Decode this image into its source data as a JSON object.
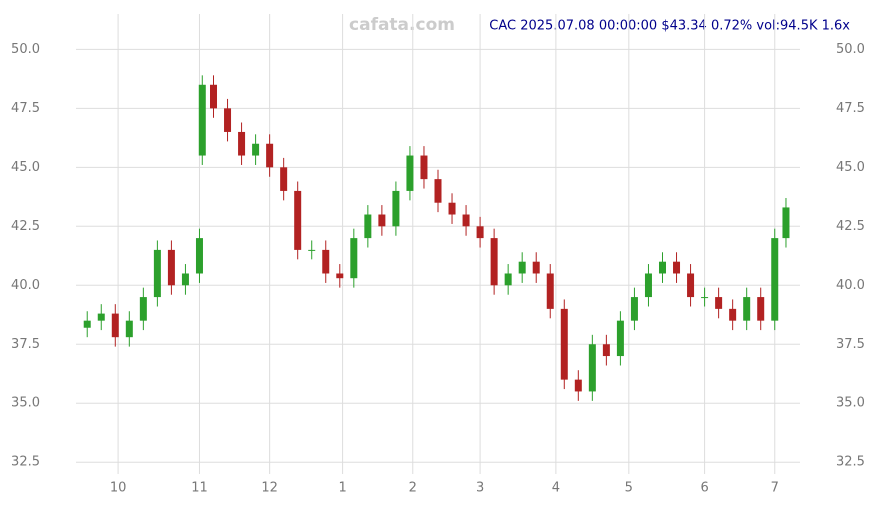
{
  "chart_data": {
    "type": "candlestick",
    "watermark": "cafata.com",
    "title": "CAC 2025.07.08 00:00:00 $43.34 0.72% vol:94.5K 1.6x",
    "x": [
      0,
      5,
      10,
      15,
      20,
      25,
      30,
      35,
      40,
      41,
      45,
      50,
      55,
      60,
      65,
      70,
      75,
      80,
      85,
      90,
      95,
      100,
      105,
      110,
      115,
      120,
      125,
      130,
      135,
      140,
      145,
      150,
      155,
      160,
      165,
      170,
      175,
      180,
      185,
      190,
      195,
      200,
      205,
      210,
      215,
      220,
      225,
      230,
      235,
      240,
      245,
      249
    ],
    "open": [
      38.2,
      38.5,
      38.8,
      37.8,
      38.5,
      39.5,
      41.5,
      40,
      40.5,
      45.5,
      48.5,
      47.5,
      46.5,
      45.5,
      46,
      45,
      44,
      41.5,
      41.5,
      40.5,
      40.3,
      42,
      43,
      42.5,
      44,
      45.5,
      44.5,
      43.5,
      43,
      42.5,
      42,
      40,
      40.5,
      41,
      40.5,
      39,
      36,
      35.5,
      37.5,
      37,
      38.5,
      39.5,
      40.5,
      41,
      40.5,
      39.5,
      39.5,
      39,
      38.5,
      39.5,
      38.5,
      42
    ],
    "high": [
      38.9,
      39.2,
      39.2,
      38.9,
      39.9,
      41.9,
      41.9,
      40.9,
      42.4,
      48.9,
      48.9,
      47.9,
      46.9,
      46.4,
      46.4,
      45.4,
      44.4,
      41.9,
      41.9,
      40.9,
      42.4,
      43.4,
      43.4,
      44.4,
      45.9,
      45.9,
      44.9,
      43.9,
      43.4,
      42.9,
      42.4,
      40.9,
      41.4,
      41.4,
      40.9,
      39.4,
      36.4,
      37.9,
      37.9,
      38.9,
      39.9,
      40.9,
      41.4,
      41.4,
      40.9,
      39.9,
      39.9,
      39.4,
      39.9,
      39.9,
      42.4,
      43.7
    ],
    "low": [
      37.8,
      38.1,
      37.4,
      37.4,
      38.1,
      39.1,
      39.6,
      39.6,
      40.1,
      45.1,
      47.1,
      46.1,
      45.1,
      45.1,
      44.6,
      43.6,
      41.1,
      41.1,
      40.1,
      39.9,
      39.9,
      41.6,
      42.1,
      42.1,
      43.6,
      44.1,
      43.1,
      42.6,
      42.1,
      41.6,
      39.6,
      39.6,
      40.1,
      40.1,
      38.6,
      35.6,
      35.1,
      35.1,
      36.6,
      36.6,
      38.1,
      39.1,
      40.1,
      40.1,
      39.1,
      39.1,
      38.6,
      38.1,
      38.1,
      38.1,
      38.1,
      41.6
    ],
    "close": [
      38.5,
      38.8,
      37.8,
      38.5,
      39.5,
      41.5,
      40,
      40.5,
      42,
      48.5,
      47.5,
      46.5,
      45.5,
      46,
      45,
      44,
      41.5,
      41.5,
      40.5,
      40.3,
      42,
      43,
      42.5,
      44,
      45.5,
      44.5,
      43.5,
      43,
      42.5,
      42,
      40,
      40.5,
      41,
      40.5,
      39,
      36,
      35.5,
      37.5,
      37,
      38.5,
      39.5,
      40.5,
      41,
      40.5,
      39.5,
      39.5,
      39,
      38.5,
      39.5,
      38.5,
      42,
      43.3
    ],
    "up_color": "#2ca02c",
    "down_color": "#b22222",
    "xlim": [
      -4,
      254
    ],
    "xticks": [
      {
        "value": 11,
        "label": "10"
      },
      {
        "value": 40,
        "label": "11"
      },
      {
        "value": 65,
        "label": "12"
      },
      {
        "value": 91,
        "label": "1"
      },
      {
        "value": 116,
        "label": "2"
      },
      {
        "value": 140,
        "label": "3"
      },
      {
        "value": 167,
        "label": "4"
      },
      {
        "value": 193,
        "label": "5"
      },
      {
        "value": 220,
        "label": "6"
      },
      {
        "value": 245,
        "label": "7"
      }
    ],
    "ylim": [
      32,
      51.5
    ],
    "yticks": [
      32.5,
      {
        "value": 35,
        "label": "35.0"
      },
      37.5,
      {
        "value": 40,
        "label": "40.0"
      },
      42.5,
      {
        "value": 45,
        "label": "45.0"
      },
      47.5,
      {
        "value": 50,
        "label": "50.0"
      }
    ],
    "grid": true
  }
}
